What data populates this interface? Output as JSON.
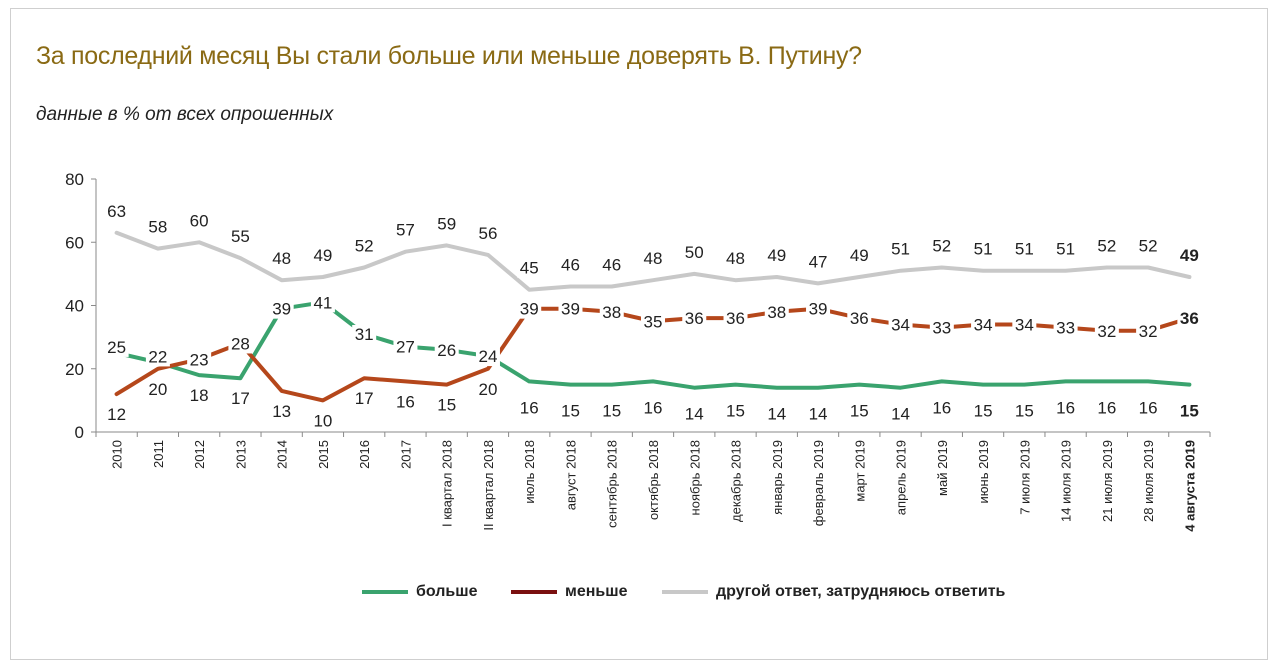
{
  "title": "За последний месяц Вы стали больше или меньше доверять В. Путину?",
  "subtitle": "данные в % от всех опрошенных",
  "chart_data": {
    "type": "line",
    "ylim": [
      0,
      80
    ],
    "yticks": [
      "0",
      "20",
      "40",
      "60",
      "80"
    ],
    "grid": false,
    "legend_position": "bottom",
    "categories": [
      "2010",
      "2011",
      "2012",
      "2013",
      "2014",
      "2015",
      "2016",
      "2017",
      "I квартал 2018",
      "II квартал 2018",
      "июль 2018",
      "август 2018",
      "сентябрь 2018",
      "октябрь 2018",
      "ноябрь 2018",
      "декабрь 2018",
      "январь 2019",
      "февраль 2019",
      "март 2019",
      "апрель 2019",
      "май 2019",
      "июнь 2019",
      "7 июля 2019",
      "14 июля 2019",
      "21 июля 2019",
      "28 июля 2019",
      "4 августа 2019"
    ],
    "series": [
      {
        "name": "больше",
        "color": "#3aa36e",
        "values": [
          25,
          22,
          18,
          17,
          39,
          41,
          31,
          27,
          26,
          24,
          16,
          15,
          15,
          16,
          14,
          15,
          14,
          14,
          15,
          14,
          16,
          15,
          15,
          16,
          16,
          16,
          15
        ]
      },
      {
        "name": "меньше",
        "color": "#b5471b",
        "legend_color": "#7a1010",
        "values": [
          12,
          20,
          23,
          28,
          13,
          10,
          17,
          16,
          15,
          20,
          39,
          39,
          38,
          35,
          36,
          36,
          38,
          39,
          36,
          34,
          33,
          34,
          34,
          33,
          32,
          32,
          36
        ]
      },
      {
        "name": "другой ответ, затрудняюсь ответить",
        "color": "#c8c8c8",
        "values": [
          63,
          58,
          60,
          55,
          48,
          49,
          52,
          57,
          59,
          56,
          45,
          46,
          46,
          48,
          50,
          48,
          49,
          47,
          49,
          51,
          52,
          51,
          51,
          51,
          52,
          52,
          49
        ]
      }
    ]
  }
}
